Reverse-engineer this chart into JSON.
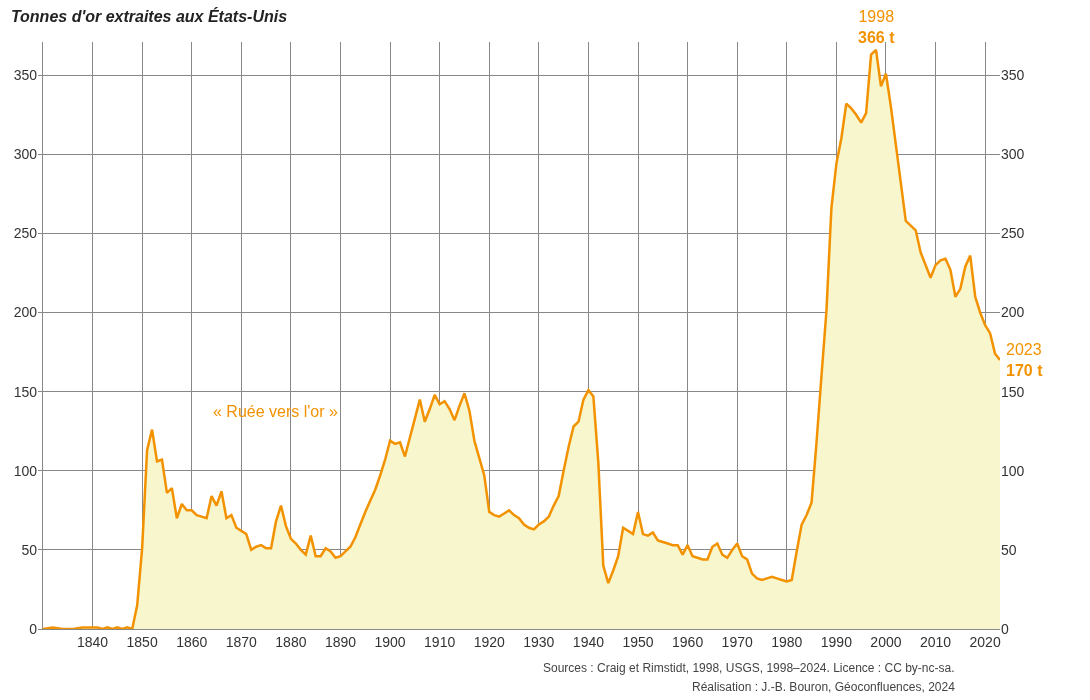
{
  "chart_data": {
    "type": "area",
    "title": "Tonnes d'or extraites aux États-Unis",
    "x": [
      1830,
      1832,
      1834,
      1836,
      1838,
      1840,
      1841,
      1842,
      1843,
      1844,
      1845,
      1846,
      1847,
      1848,
      1849,
      1850,
      1851,
      1852,
      1853,
      1854,
      1855,
      1856,
      1857,
      1858,
      1859,
      1860,
      1861,
      1862,
      1863,
      1864,
      1865,
      1866,
      1867,
      1868,
      1869,
      1870,
      1871,
      1872,
      1873,
      1874,
      1875,
      1876,
      1877,
      1878,
      1879,
      1880,
      1881,
      1882,
      1883,
      1884,
      1885,
      1886,
      1887,
      1888,
      1889,
      1890,
      1891,
      1892,
      1893,
      1894,
      1895,
      1896,
      1897,
      1898,
      1899,
      1900,
      1901,
      1902,
      1903,
      1904,
      1905,
      1906,
      1907,
      1908,
      1909,
      1910,
      1911,
      1912,
      1913,
      1914,
      1915,
      1916,
      1917,
      1918,
      1919,
      1920,
      1921,
      1922,
      1923,
      1924,
      1925,
      1926,
      1927,
      1928,
      1929,
      1930,
      1931,
      1932,
      1933,
      1934,
      1935,
      1936,
      1937,
      1938,
      1939,
      1940,
      1941,
      1942,
      1943,
      1944,
      1945,
      1946,
      1947,
      1948,
      1949,
      1950,
      1951,
      1952,
      1953,
      1954,
      1955,
      1956,
      1957,
      1958,
      1959,
      1960,
      1961,
      1962,
      1963,
      1964,
      1965,
      1966,
      1967,
      1968,
      1969,
      1970,
      1971,
      1972,
      1973,
      1974,
      1975,
      1976,
      1977,
      1978,
      1979,
      1980,
      1981,
      1982,
      1983,
      1984,
      1985,
      1986,
      1987,
      1988,
      1989,
      1990,
      1991,
      1992,
      1993,
      1994,
      1995,
      1996,
      1997,
      1998,
      1999,
      2000,
      2001,
      2002,
      2003,
      2004,
      2005,
      2006,
      2007,
      2008,
      2009,
      2010,
      2011,
      2012,
      2013,
      2014,
      2015,
      2016,
      2017,
      2018,
      2019,
      2020,
      2021,
      2022,
      2023
    ],
    "series": [
      {
        "color": "#f39200",
        "values": [
          0,
          1,
          0,
          0,
          1,
          1,
          1,
          0,
          1,
          0,
          1,
          0,
          1,
          0,
          15,
          51,
          113,
          126,
          106,
          107,
          86,
          89,
          70,
          79,
          75,
          75,
          72,
          71,
          70,
          84,
          78,
          87,
          70,
          72,
          64,
          62,
          60,
          50,
          52,
          53,
          51,
          51,
          68,
          78,
          65,
          57,
          54,
          50,
          47,
          59,
          46,
          46,
          51,
          49,
          45,
          46,
          49,
          52,
          58,
          66,
          74,
          81,
          88,
          97,
          107,
          119,
          117,
          118,
          109,
          121,
          133,
          145,
          131,
          139,
          148,
          142,
          144,
          139,
          132,
          141,
          149,
          138,
          119,
          108,
          97,
          74,
          72,
          71,
          73,
          75,
          72,
          70,
          66,
          64,
          63,
          66,
          68,
          71,
          78,
          84,
          100,
          115,
          128,
          131,
          145,
          151,
          147,
          105,
          40,
          29,
          37,
          46,
          64,
          62,
          60,
          74,
          60,
          59,
          61,
          56,
          55,
          54,
          53,
          53,
          47,
          53,
          46,
          45,
          44,
          44,
          52,
          54,
          47,
          45,
          50,
          54,
          46,
          44,
          35,
          32,
          31,
          32,
          33,
          32,
          31,
          30,
          31,
          49,
          66,
          72,
          80,
          118,
          160,
          201,
          266,
          294,
          310,
          332,
          329,
          325,
          320,
          326,
          363,
          366,
          343,
          351,
          330,
          306,
          282,
          258,
          255,
          252,
          238,
          230,
          222,
          230,
          233,
          234,
          227,
          210,
          215,
          229,
          236,
          210,
          200,
          192,
          187,
          174,
          170
        ]
      }
    ],
    "xlim": [
      1829,
      2023
    ],
    "xticks": [
      {
        "value": 1830,
        "label": null
      },
      1840,
      1850,
      1860,
      1870,
      1880,
      1890,
      1900,
      1910,
      1920,
      1930,
      1940,
      1950,
      1960,
      1970,
      1980,
      1990,
      2000,
      2010,
      2020
    ],
    "ylim": [
      0,
      371
    ],
    "yticks": [
      0,
      50,
      100,
      150,
      200,
      250,
      300,
      350
    ],
    "y2lim": [
      0,
      371
    ],
    "y2ticks": [
      0,
      50,
      100,
      150,
      200,
      250,
      300,
      350
    ],
    "grid": true,
    "legend": false,
    "marker": "none",
    "line_style": "solid",
    "annotations": [
      "« Ruée vers l'or »",
      {
        "text": "1998\n366 t",
        "x": 1998,
        "y": 366
      },
      {
        "text": "2023\n170 t",
        "x": 2023,
        "y": 170
      },
      "Sources : Craig et Rimstidt, 1998, USGS, 1998–2024. Licence : CC by-nc-sa.",
      "Réalisation : J.-B. Bouron, Géoconfluences, 2024"
    ]
  }
}
